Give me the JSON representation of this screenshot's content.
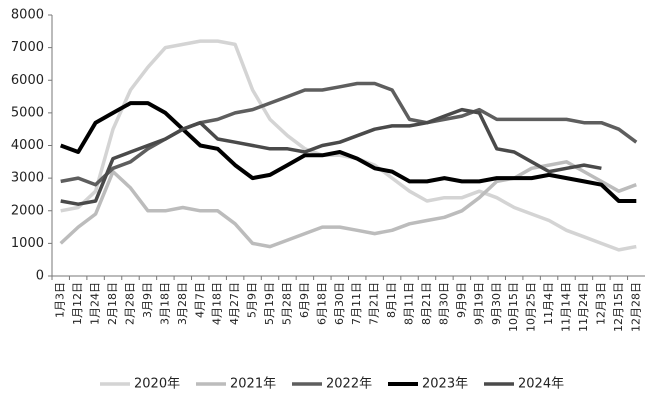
{
  "chart_data": {
    "type": "line",
    "categories": [
      "1月3日",
      "1月12日",
      "1月24日",
      "2月18日",
      "2月28日",
      "3月9日",
      "3月18日",
      "3月28日",
      "4月7日",
      "4月18日",
      "4月27日",
      "5月9日",
      "5月19日",
      "5月28日",
      "6月9日",
      "6月18日",
      "6月30日",
      "7月11日",
      "7月21日",
      "8月1日",
      "8月11日",
      "8月21日",
      "8月30日",
      "9月9日",
      "9月19日",
      "9月30日",
      "10月15日",
      "10月25日",
      "11月4日",
      "11月14日",
      "11月24日",
      "12月3日",
      "12月15日",
      "12月28日"
    ],
    "series": [
      {
        "name": "2020年",
        "color": "#d4d4d4",
        "values": [
          2000,
          2100,
          2600,
          4500,
          5700,
          6400,
          7000,
          7100,
          7200,
          7200,
          7100,
          5700,
          4800,
          4300,
          3900,
          3700,
          3700,
          3600,
          3400,
          3000,
          2600,
          2300,
          2400,
          2400,
          2600,
          2400,
          2100,
          1900,
          1700,
          1400,
          1200,
          1000,
          800,
          900
        ]
      },
      {
        "name": "2021年",
        "color": "#bcbcbc",
        "values": [
          1000,
          1500,
          1900,
          3200,
          2700,
          2000,
          2000,
          2100,
          2000,
          2000,
          1600,
          1000,
          900,
          1100,
          1300,
          1500,
          1500,
          1400,
          1300,
          1400,
          1600,
          1700,
          1800,
          2000,
          2400,
          2900,
          3000,
          3300,
          3400,
          3500,
          3200,
          2900,
          2600,
          2800
        ]
      },
      {
        "name": "2022年",
        "color": "#5e5e5e",
        "values": [
          2900,
          3000,
          2800,
          3300,
          3500,
          3900,
          4200,
          4500,
          4700,
          4800,
          5000,
          5100,
          5300,
          5500,
          5700,
          5700,
          5800,
          5900,
          5900,
          5700,
          4800,
          4700,
          4800,
          4900,
          5100,
          4800,
          4800,
          4800,
          4800,
          4800,
          4700,
          4700,
          4500,
          4100
        ]
      },
      {
        "name": "2023年",
        "color": "#000000",
        "values": [
          4000,
          3800,
          4700,
          5000,
          5300,
          5300,
          5000,
          4500,
          4000,
          3900,
          3400,
          3000,
          3100,
          3400,
          3700,
          3700,
          3800,
          3600,
          3300,
          3200,
          2900,
          2900,
          3000,
          2900,
          2900,
          3000,
          3000,
          3000,
          3100,
          3000,
          2900,
          2800,
          2300,
          2300
        ]
      },
      {
        "name": "2024年",
        "color": "#4a4a4a",
        "values": [
          2300,
          2200,
          2300,
          3600,
          3800,
          4000,
          4200,
          4500,
          4700,
          4200,
          4100,
          4000,
          3900,
          3900,
          3800,
          4000,
          4100,
          4300,
          4500,
          4600,
          4600,
          4700,
          4900,
          5100,
          5000,
          3900,
          3800,
          3500,
          3200,
          3300,
          3400,
          3300,
          null,
          null
        ]
      }
    ],
    "ylim": [
      0,
      8000
    ],
    "yticks": [
      0,
      1000,
      2000,
      3000,
      4000,
      5000,
      6000,
      7000,
      8000
    ],
    "grid": false
  }
}
